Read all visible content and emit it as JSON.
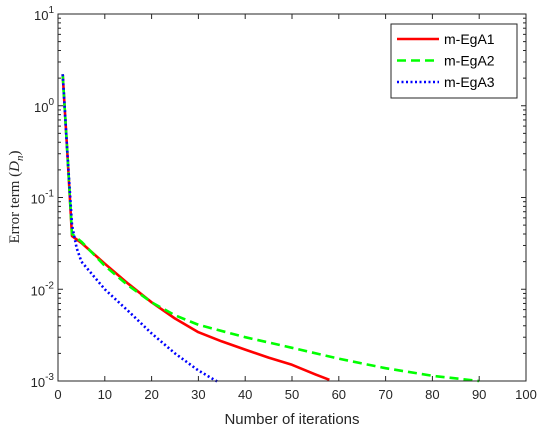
{
  "chart_data": {
    "type": "line",
    "title": "",
    "xlabel": "Number of iterations",
    "ylabel": "Error term",
    "ylabel_symbol": "D",
    "ylabel_subscript": "n",
    "xlim": [
      0,
      100
    ],
    "ylim": [
      0.001,
      10
    ],
    "yscale": "log",
    "grid": false,
    "legend_position": "top-right",
    "x_ticks": [
      0,
      10,
      20,
      30,
      40,
      50,
      60,
      70,
      80,
      90,
      100
    ],
    "y_ticks": [
      0.001,
      0.01,
      0.1,
      1,
      10
    ],
    "y_tick_labels": [
      {
        "base": "10",
        "exp": "-3"
      },
      {
        "base": "10",
        "exp": "-2"
      },
      {
        "base": "10",
        "exp": "-1"
      },
      {
        "base": "10",
        "exp": "0"
      },
      {
        "base": "10",
        "exp": "1"
      }
    ],
    "series": [
      {
        "name": "m-EgA1",
        "color": "#ff0000",
        "style": "solid",
        "points": [
          [
            1,
            2.2
          ],
          [
            2,
            0.3
          ],
          [
            3,
            0.038
          ],
          [
            5,
            0.032
          ],
          [
            10,
            0.019
          ],
          [
            15,
            0.0115
          ],
          [
            20,
            0.0072
          ],
          [
            25,
            0.0048
          ],
          [
            30,
            0.0034
          ],
          [
            35,
            0.0027
          ],
          [
            40,
            0.0022
          ],
          [
            45,
            0.0018
          ],
          [
            50,
            0.0015
          ],
          [
            55,
            0.00118
          ],
          [
            58,
            0.00103
          ]
        ]
      },
      {
        "name": "m-EgA2",
        "color": "#00ff00",
        "style": "dashed",
        "points": [
          [
            1,
            2.2
          ],
          [
            2,
            0.3
          ],
          [
            3,
            0.04
          ],
          [
            5,
            0.033
          ],
          [
            10,
            0.018
          ],
          [
            15,
            0.011
          ],
          [
            20,
            0.0072
          ],
          [
            25,
            0.0052
          ],
          [
            30,
            0.0041
          ],
          [
            40,
            0.003
          ],
          [
            50,
            0.0023
          ],
          [
            60,
            0.00175
          ],
          [
            70,
            0.00138
          ],
          [
            80,
            0.00114
          ],
          [
            90,
            0.001
          ]
        ]
      },
      {
        "name": "m-EgA3",
        "color": "#0000ff",
        "style": "dotted",
        "points": [
          [
            1,
            2.2
          ],
          [
            2,
            0.3
          ],
          [
            3,
            0.05
          ],
          [
            4,
            0.028
          ],
          [
            5,
            0.02
          ],
          [
            10,
            0.01
          ],
          [
            15,
            0.0058
          ],
          [
            20,
            0.0033
          ],
          [
            25,
            0.002
          ],
          [
            30,
            0.0013
          ],
          [
            34,
            0.00099
          ]
        ]
      }
    ]
  }
}
